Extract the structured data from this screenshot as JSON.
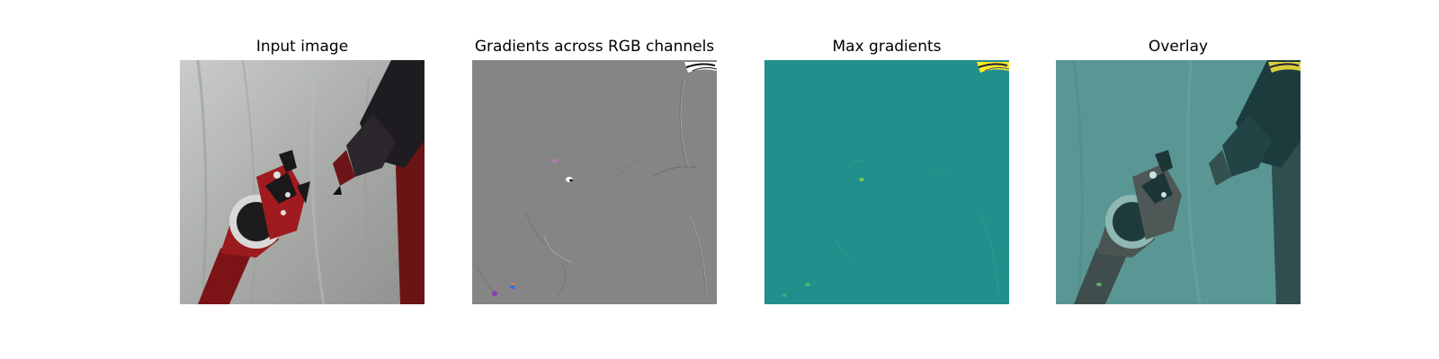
{
  "panels": [
    {
      "title": "Input image"
    },
    {
      "title": "Gradients across RGB channels"
    },
    {
      "title": "Max gradients"
    },
    {
      "title": "Overlay"
    }
  ],
  "colors": {
    "background_cloth": "#a9aca9",
    "robot_red": "#7c1316",
    "robot_dark": "#201d22",
    "gradient_gray": "#858585",
    "max_gradient_teal": "#21908d",
    "overlay_teal": "#4a8886"
  }
}
